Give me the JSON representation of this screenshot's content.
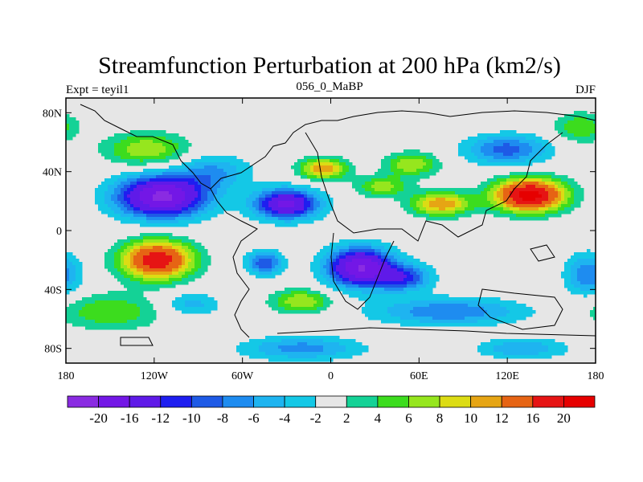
{
  "chart_data": {
    "type": "heatmap",
    "title": "Streamfunction Perturbation at 200 hPa (km2/s)",
    "left_subtitle": "Expt = teyil1",
    "center_subtitle": "056_0_MaBP",
    "right_subtitle": "DJF",
    "xlabel": "",
    "ylabel": "",
    "xlim": [
      -180,
      180
    ],
    "ylim": [
      -90,
      90
    ],
    "x_ticks": [
      {
        "value": -180,
        "label": "180"
      },
      {
        "value": -120,
        "label": "120W"
      },
      {
        "value": -60,
        "label": "60W"
      },
      {
        "value": 0,
        "label": "0"
      },
      {
        "value": 60,
        "label": "60E"
      },
      {
        "value": 120,
        "label": "120E"
      },
      {
        "value": 180,
        "label": "180"
      }
    ],
    "y_ticks": [
      {
        "value": 80,
        "label": "80N"
      },
      {
        "value": 40,
        "label": "40N"
      },
      {
        "value": 0,
        "label": "0"
      },
      {
        "value": -40,
        "label": "40S"
      },
      {
        "value": -80,
        "label": "80S"
      }
    ],
    "background_color": "#e6e6e6",
    "colorbar": {
      "levels": [
        -20,
        -16,
        -12,
        -10,
        -8,
        -6,
        -4,
        -2,
        2,
        4,
        6,
        8,
        10,
        12,
        16,
        20
      ],
      "labels": [
        "-20",
        "-16",
        "-12",
        "-10",
        "-8",
        "-6",
        "-4",
        "-2",
        "2",
        "4",
        "6",
        "8",
        "10",
        "12",
        "16",
        "20"
      ],
      "colors": [
        "#8a2be2",
        "#7317e6",
        "#5f1ae8",
        "#1e1ef0",
        "#1e5ae6",
        "#1e8cf0",
        "#1eb4f0",
        "#14c8e6",
        "#e6e6e6",
        "#14d296",
        "#3cdc1e",
        "#96e61e",
        "#dcdc14",
        "#e6a514",
        "#e66414",
        "#e61414",
        "#e60000"
      ]
    },
    "field_centers": [
      {
        "lon": -115,
        "lat": 23,
        "value": -21,
        "slon": 30,
        "slat": 14
      },
      {
        "lon": -30,
        "lat": 18,
        "value": -17,
        "slon": 22,
        "slat": 10
      },
      {
        "lon": -80,
        "lat": 40,
        "value": -6,
        "slon": 25,
        "slat": 12
      },
      {
        "lon": 20,
        "lat": -25,
        "value": -20,
        "slon": 22,
        "slat": 13
      },
      {
        "lon": 50,
        "lat": -32,
        "value": -10,
        "slon": 18,
        "slat": 9
      },
      {
        "lon": -45,
        "lat": -22,
        "value": -10,
        "slon": 12,
        "slat": 8
      },
      {
        "lon": 135,
        "lat": 24,
        "value": 22,
        "slon": 24,
        "slat": 11
      },
      {
        "lon": 75,
        "lat": 18,
        "value": 12,
        "slon": 20,
        "slat": 8
      },
      {
        "lon": 35,
        "lat": 30,
        "value": 7,
        "slon": 18,
        "slat": 7
      },
      {
        "lon": -118,
        "lat": -20,
        "value": 19,
        "slon": 24,
        "slat": 13
      },
      {
        "lon": -125,
        "lat": 55,
        "value": 8,
        "slon": 28,
        "slat": 11
      },
      {
        "lon": -5,
        "lat": 42,
        "value": 12,
        "slon": 16,
        "slat": 7
      },
      {
        "lon": 55,
        "lat": 45,
        "value": 8,
        "slon": 18,
        "slat": 8
      },
      {
        "lon": 120,
        "lat": 55,
        "value": -9,
        "slon": 28,
        "slat": 10
      },
      {
        "lon": 170,
        "lat": 70,
        "value": 6,
        "slon": 18,
        "slat": 10
      },
      {
        "lon": -150,
        "lat": -55,
        "value": 6,
        "slon": 35,
        "slat": 12
      },
      {
        "lon": -20,
        "lat": -48,
        "value": 8,
        "slon": 20,
        "slat": 8
      },
      {
        "lon": 80,
        "lat": -55,
        "value": -8,
        "slon": 50,
        "slat": 9
      },
      {
        "lon": -20,
        "lat": -80,
        "value": -7,
        "slon": 40,
        "slat": 8
      },
      {
        "lon": 130,
        "lat": -80,
        "value": -6,
        "slon": 30,
        "slat": 7
      },
      {
        "lon": 175,
        "lat": -30,
        "value": -8,
        "slon": 15,
        "slat": 14
      },
      {
        "lon": -95,
        "lat": -50,
        "value": -5,
        "slon": 20,
        "slat": 8
      }
    ]
  }
}
